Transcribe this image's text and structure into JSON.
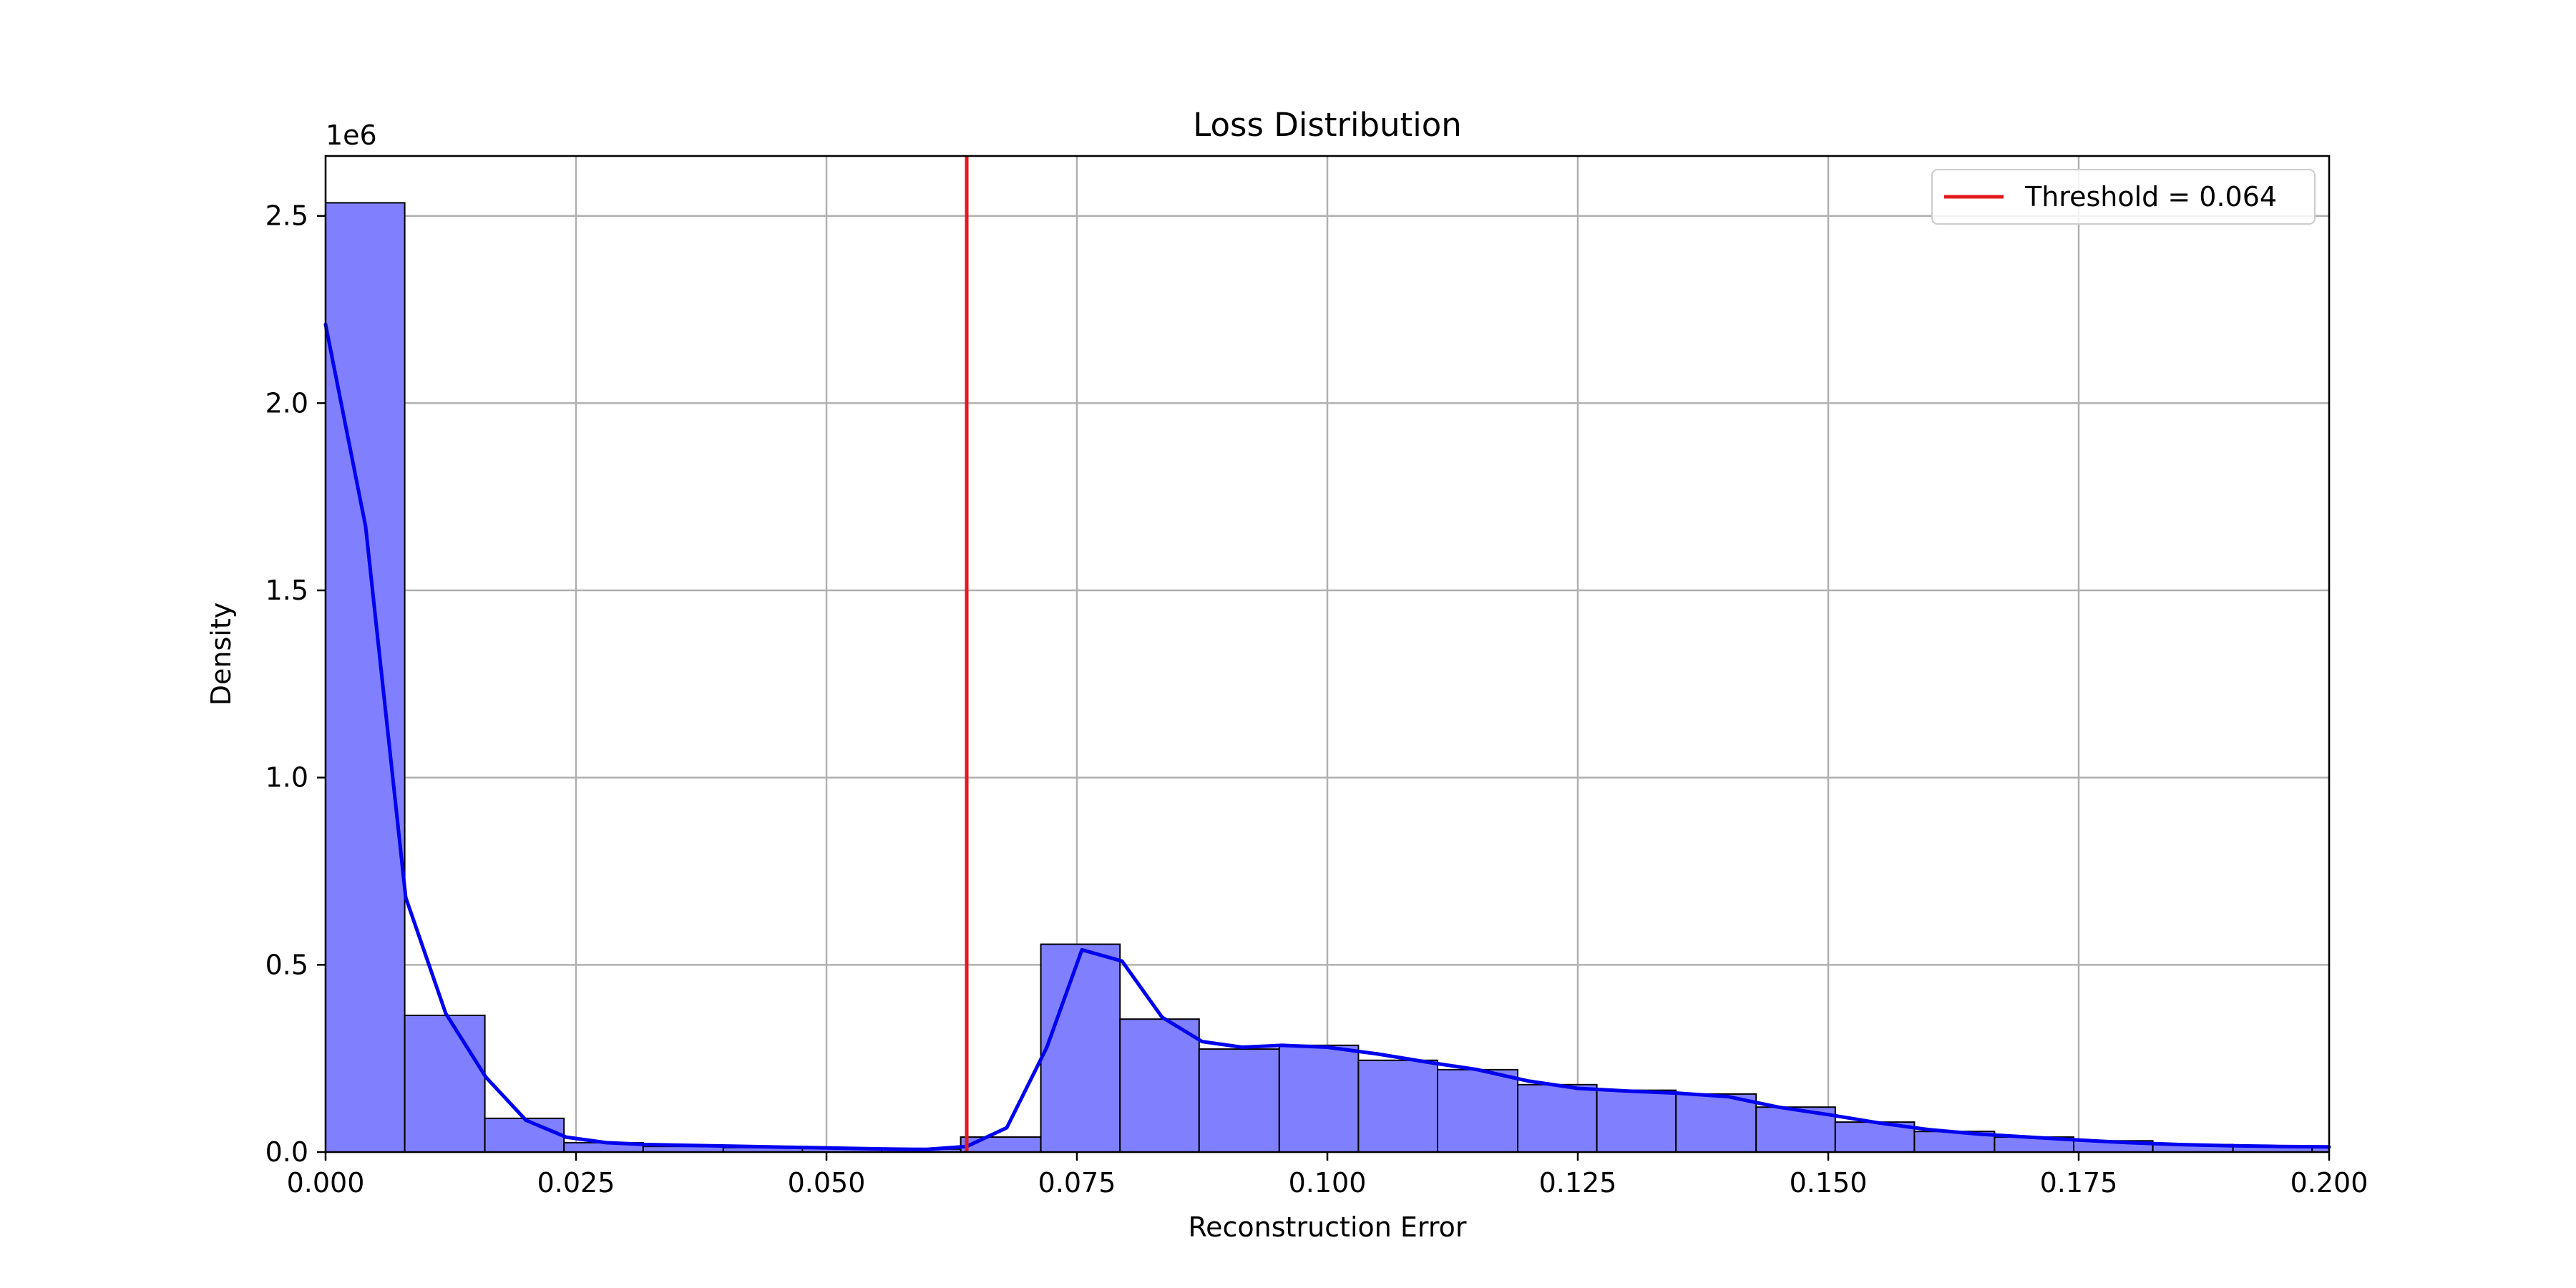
{
  "chart_data": {
    "type": "bar",
    "title": "Loss Distribution",
    "xlabel": "Reconstruction Error",
    "ylabel": "Density",
    "y_multiplier_label": "1e6",
    "xlim": [
      0,
      0.2
    ],
    "ylim": [
      0,
      2.66
    ],
    "grid": true,
    "legend_position": "top-right",
    "x_ticks": [
      0.0,
      0.025,
      0.05,
      0.075,
      0.1,
      0.125,
      0.15,
      0.175,
      0.2
    ],
    "x_tick_labels": [
      "0.000",
      "0.025",
      "0.050",
      "0.075",
      "0.100",
      "0.125",
      "0.150",
      "0.175",
      "0.200"
    ],
    "y_ticks": [
      0.0,
      0.5,
      1.0,
      1.5,
      2.0,
      2.5
    ],
    "y_tick_labels": [
      "0.0",
      "0.5",
      "1.0",
      "1.5",
      "2.0",
      "2.5"
    ],
    "histogram": {
      "bin_edges": [
        0.0,
        0.0079,
        0.0159,
        0.0238,
        0.0317,
        0.0397,
        0.0476,
        0.0555,
        0.0634,
        0.0714,
        0.0793,
        0.0872,
        0.0952,
        0.1031,
        0.111,
        0.119,
        0.1269,
        0.1348,
        0.1428,
        0.1507,
        0.1586,
        0.1666,
        0.1745,
        0.1824,
        0.1904,
        0.1983,
        0.2
      ],
      "values": [
        2.535,
        0.365,
        0.09,
        0.025,
        0.015,
        0.012,
        0.01,
        0.008,
        0.04,
        0.555,
        0.355,
        0.275,
        0.285,
        0.245,
        0.22,
        0.18,
        0.165,
        0.155,
        0.12,
        0.08,
        0.055,
        0.04,
        0.03,
        0.02,
        0.015,
        0.012
      ],
      "color": "#8080ff",
      "edge_color": "#000000"
    },
    "kde": {
      "color": "#0000ee",
      "x": [
        0.0,
        0.004,
        0.008,
        0.012,
        0.016,
        0.02,
        0.024,
        0.028,
        0.032,
        0.036,
        0.04,
        0.046,
        0.052,
        0.056,
        0.06,
        0.064,
        0.068,
        0.072,
        0.0755,
        0.0795,
        0.0835,
        0.0875,
        0.0915,
        0.0955,
        0.1,
        0.105,
        0.11,
        0.115,
        0.12,
        0.125,
        0.13,
        0.135,
        0.14,
        0.145,
        0.15,
        0.155,
        0.16,
        0.165,
        0.17,
        0.175,
        0.18,
        0.185,
        0.19,
        0.195,
        0.2
      ],
      "y": [
        2.21,
        1.67,
        0.68,
        0.37,
        0.2,
        0.085,
        0.04,
        0.025,
        0.02,
        0.018,
        0.016,
        0.013,
        0.01,
        0.008,
        0.007,
        0.015,
        0.065,
        0.28,
        0.54,
        0.51,
        0.36,
        0.295,
        0.28,
        0.285,
        0.28,
        0.262,
        0.24,
        0.22,
        0.19,
        0.17,
        0.163,
        0.157,
        0.148,
        0.12,
        0.1,
        0.078,
        0.06,
        0.048,
        0.04,
        0.032,
        0.025,
        0.02,
        0.017,
        0.015,
        0.014
      ]
    },
    "threshold": {
      "value": 0.064,
      "label": "Threshold = 0.064",
      "color": "#e31a1c"
    }
  }
}
